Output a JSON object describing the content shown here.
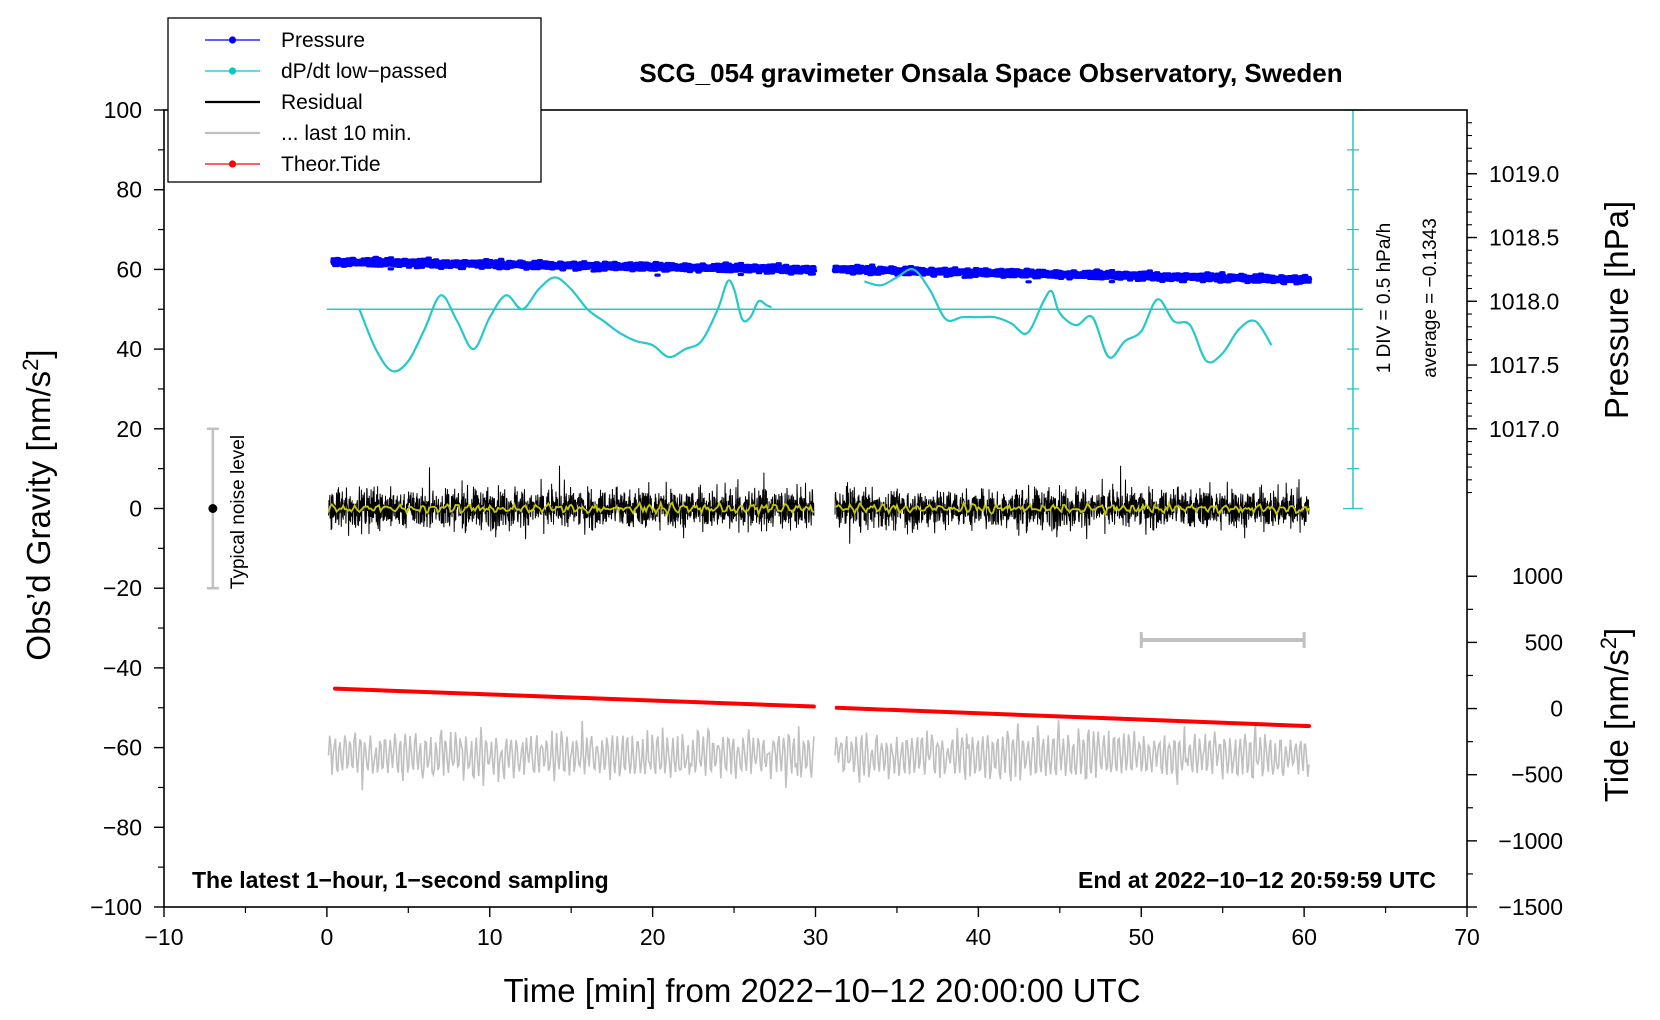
{
  "chart_data": {
    "type": "line",
    "title": "SCG_054 gravimeter Onsala Space Observatory, Sweden",
    "xlabel": "Time [min] from 2022−10−12 20:00:00 UTC",
    "ylabel_left": "Obs’d Gravity [nm/s²]",
    "ylabel_left_main": "Obs’d Gravity [nm/s",
    "ylabel_left_sup": "2",
    "ylabel_left_end": "]",
    "ylabel_pressure": "Pressure [hPa]",
    "ylabel_tide": "Tide [nm/s²]",
    "ylabel_tide_main": "Tide [nm/s",
    "ylabel_tide_sup": "2",
    "ylabel_tide_end": "]",
    "xlim": [
      -10,
      70
    ],
    "ylim": [
      -100,
      100
    ],
    "x_ticks": [
      -10,
      0,
      10,
      20,
      30,
      40,
      50,
      60,
      70
    ],
    "x_tick_labels": [
      "−10",
      "0",
      "10",
      "20",
      "30",
      "40",
      "50",
      "60",
      "70"
    ],
    "y_ticks": [
      -100,
      -80,
      -60,
      -40,
      -20,
      0,
      20,
      40,
      60,
      80,
      100
    ],
    "y_tick_labels": [
      "−100",
      "−80",
      "−60",
      "−40",
      "−20",
      "0",
      "20",
      "40",
      "60",
      "80",
      "100"
    ],
    "pressure_axis": {
      "ticks": [
        1017.0,
        1017.5,
        1018.0,
        1018.5,
        1019.0
      ],
      "labels": [
        "1017.0",
        "1017.5",
        "1018.0",
        "1018.5",
        "1019.0"
      ],
      "map_to_gravity": [
        [
          1017.0,
          20
        ],
        [
          1019.0,
          84
        ]
      ]
    },
    "tide_axis": {
      "ticks": [
        -1500,
        -1000,
        -500,
        0,
        500,
        1000
      ],
      "labels": [
        "−1500",
        "−1000",
        "−500",
        "0",
        "500",
        "1000"
      ],
      "map_to_gravity": [
        [
          -1500,
          -100
        ],
        [
          1000,
          -17
        ]
      ]
    },
    "legend": [
      {
        "label": "Pressure",
        "color": "#0000ff",
        "marker": "dot"
      },
      {
        "label": "dP/dt low−passed",
        "color": "#00c8c8",
        "marker": "dot"
      },
      {
        "label": "Residual",
        "color": "#000000",
        "marker": "line"
      },
      {
        "label": "... last 10 min.",
        "color": "#c0c0c0",
        "marker": "line"
      },
      {
        "label": "Theor.Tide",
        "color": "#ff0000",
        "marker": "dot"
      }
    ],
    "series": [
      {
        "name": "Pressure",
        "color": "#0000ff",
        "segments": [
          [
            0.4,
            29.9,
            1018.31,
            1018.25
          ],
          [
            31.2,
            60.3,
            1018.25,
            1018.17
          ]
        ]
      },
      {
        "name": "dP/dt low−passed",
        "color": "#28c8c8",
        "x": [
          2.0,
          3.0,
          4.0,
          5.0,
          6.0,
          7.0,
          8.0,
          9.0,
          10.0,
          11.0,
          12.0,
          13.0,
          14.0,
          15.0,
          16.0,
          17.0,
          18.0,
          19.0,
          20.0,
          21.0,
          22.0,
          23.0,
          24.0,
          24.6,
          25.0,
          25.5,
          26.0,
          26.5,
          27.0,
          27.3,
          null,
          33.0,
          34.0,
          35.0,
          36.0,
          37.0,
          38.0,
          39.0,
          40.0,
          41.0,
          42.0,
          43.0,
          44.0,
          44.5,
          45.0,
          46.0,
          47.0,
          48.0,
          49.0,
          50.0,
          51.0,
          52.0,
          53.0,
          54.0,
          55.0,
          56.0,
          57.0,
          58.0
        ],
        "y": [
          50,
          40,
          34.5,
          37,
          45,
          53.5,
          47,
          40,
          48,
          53.5,
          50,
          55,
          58,
          55,
          50,
          47,
          44,
          42,
          41,
          38,
          40,
          42,
          50,
          57,
          55,
          47.5,
          48,
          52,
          51,
          50.5,
          null,
          57,
          56,
          58,
          60,
          55,
          47.5,
          48,
          48,
          48,
          46.5,
          44,
          52,
          54.5,
          49,
          46,
          48,
          38,
          42,
          44.5,
          52.5,
          47,
          46,
          37,
          39,
          45,
          47,
          41
        ]
      },
      {
        "name": "Residual",
        "color": "#000000",
        "segments": [
          [
            0.1,
            29.9
          ],
          [
            31.2,
            60.3
          ]
        ],
        "amplitude": 12
      },
      {
        "name": "Residual (smoothed)",
        "color": "#c8c800",
        "segments": [
          [
            0.1,
            29.9
          ],
          [
            31.2,
            60.3
          ]
        ]
      },
      {
        "name": "... last 10 min.",
        "color": "#c0c0c0",
        "segments": [
          [
            0.1,
            29.9
          ],
          [
            31.2,
            60.3
          ]
        ],
        "center": -62
      },
      {
        "name": "Theor.Tide",
        "color": "#ff0000",
        "segments": [
          [
            0.5,
            29.9,
            -45.2,
            -49.7
          ],
          [
            31.3,
            60.3,
            -50.0,
            -54.6
          ]
        ]
      }
    ],
    "dpdt_reference": {
      "x_axis": 63.0,
      "y_from": 0,
      "y_to": 100,
      "zero_line_y": 50
    },
    "gray_scale_bar": {
      "x_from": 50,
      "x_to": 60,
      "y": -33
    },
    "noise_bar": {
      "x": -7,
      "y_from": -20,
      "y_to": 20,
      "dot_y": 0
    },
    "annotations": {
      "dpdt_scale": "1 DIV = 0.5 hPa/h",
      "dpdt_average": "average = −0.1343",
      "noise_label": "Typical noise level",
      "bottom_left": "The latest 1−hour, 1−second sampling",
      "bottom_right": "End at 2022−10−12 20:59:59 UTC"
    }
  }
}
